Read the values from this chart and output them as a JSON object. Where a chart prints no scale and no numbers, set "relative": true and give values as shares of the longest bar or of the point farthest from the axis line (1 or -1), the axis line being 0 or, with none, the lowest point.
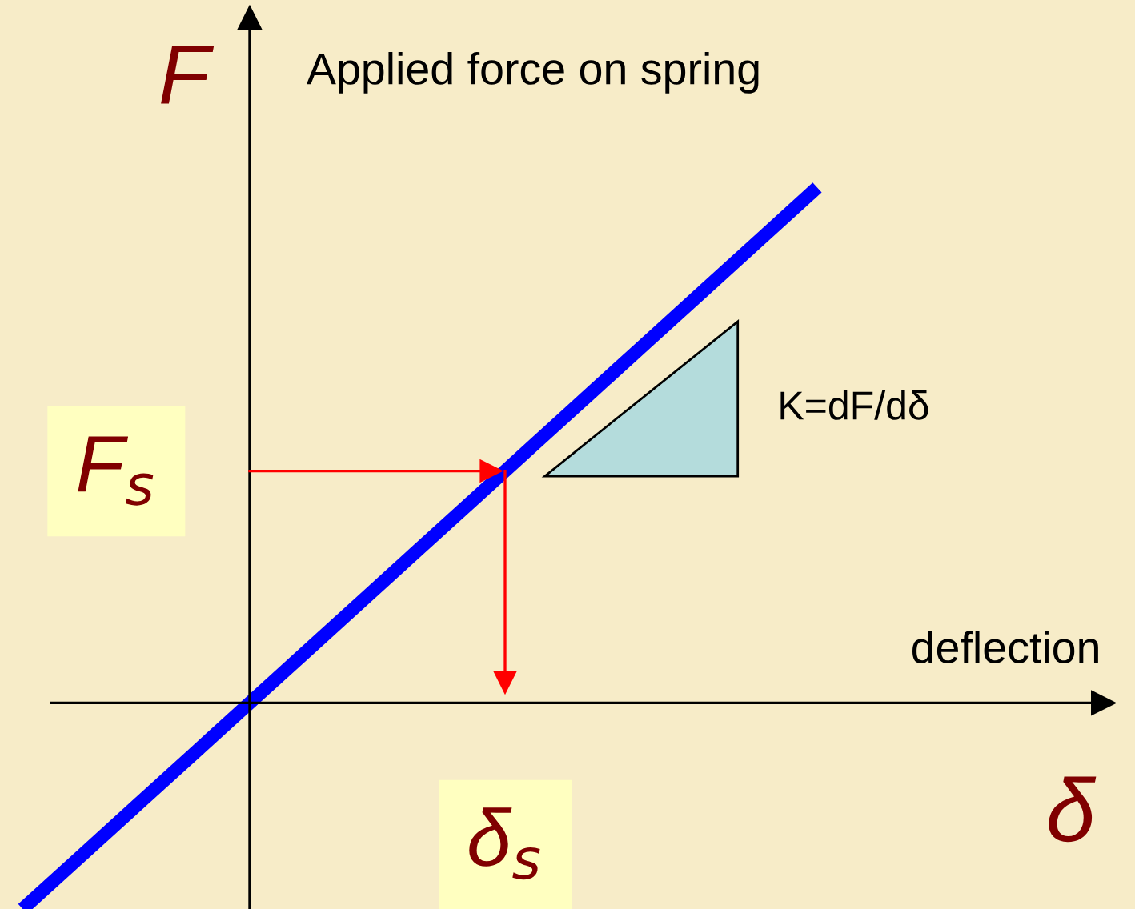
{
  "chart_data": {
    "type": "line",
    "relative": true,
    "xlabel": "δ",
    "ylabel": "F",
    "categories": [
      null,
      null,
      null,
      null,
      null,
      null,
      null,
      null,
      null,
      null,
      null,
      null,
      null,
      null,
      null
    ],
    "series": [
      {
        "color": "#0000ff",
        "values": [
          -0.4,
          -0.3,
          -0.2,
          -0.1,
          0,
          0.1,
          0.2,
          0.3,
          0.4,
          0.5,
          0.6,
          0.7,
          0.8,
          0.9,
          1
        ]
      }
    ],
    "ref_lines": [
      {
        "axis": "y",
        "value": 0.45,
        "label": "F$_{s}$",
        "color": "#ff0000"
      }
    ],
    "annotations": [
      "Applied force on spring",
      "deflection",
      "K=dF/dδ",
      "δ$_{s}$"
    ],
    "marker": "none",
    "line_style": "solid"
  }
}
